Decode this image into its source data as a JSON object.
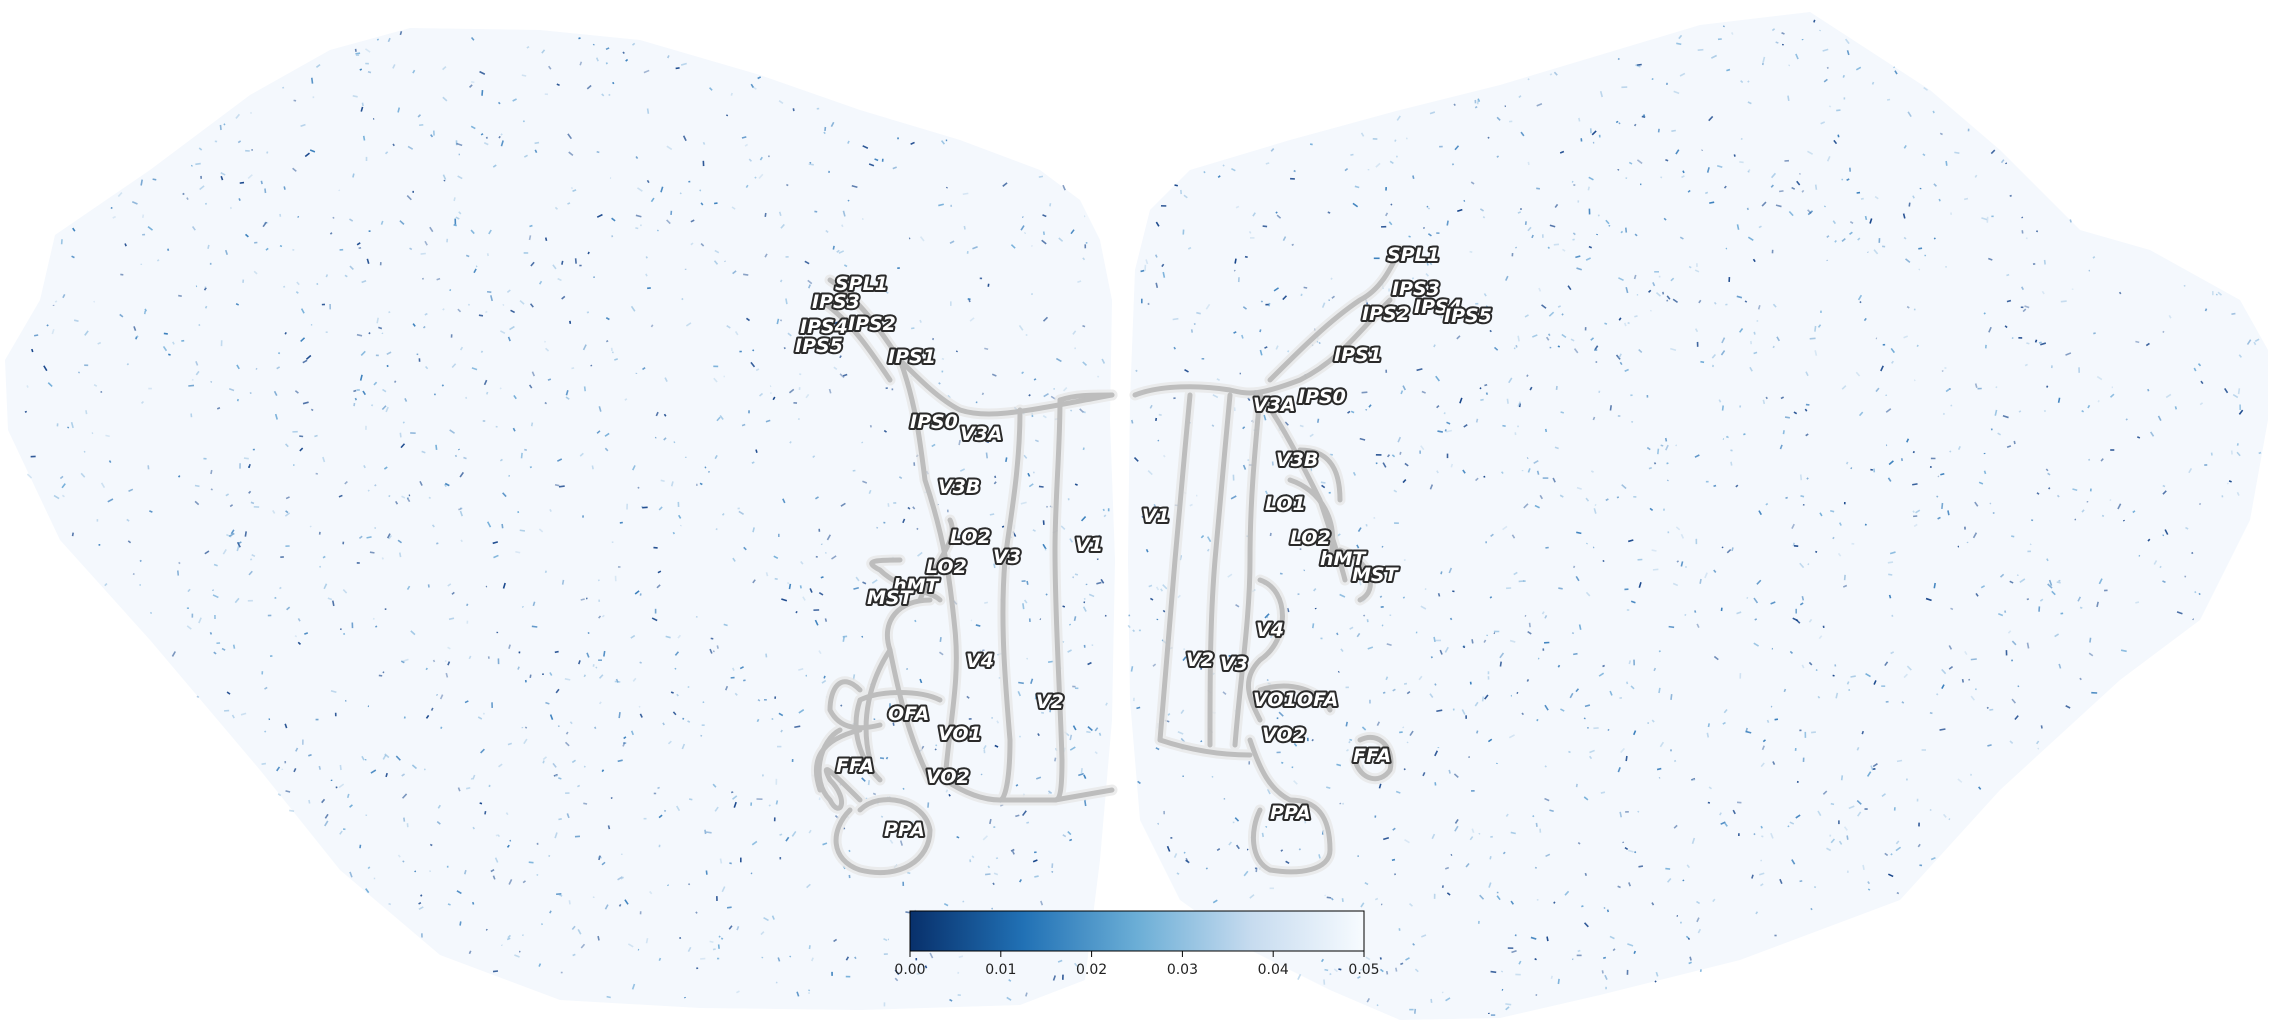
{
  "colorbar": {
    "min": 0.0,
    "max": 0.05,
    "ticks": [
      "0.00",
      "0.01",
      "0.02",
      "0.03",
      "0.04",
      "0.05"
    ],
    "colormap": [
      "#08306b",
      "#2171b5",
      "#6baed6",
      "#c6dbef",
      "#f7fbff"
    ]
  },
  "colors": {
    "background": "#f4f8fd",
    "speckle": "#0b3c85",
    "border": "#b9b9b9"
  },
  "left_hemisphere": {
    "rois": [
      "SPL1",
      "IPS3",
      "IPS2",
      "IPS4",
      "IPS5",
      "IPS1",
      "IPS0",
      "V3A",
      "V3B",
      "LO2",
      "LO2",
      "V3",
      "V1",
      "hMT",
      "MST",
      "V4",
      "V2",
      "OFA",
      "VO1",
      "FFA",
      "VO2",
      "PPA"
    ]
  },
  "right_hemisphere": {
    "rois": [
      "SPL1",
      "IPS3",
      "IPS2",
      "IPS4",
      "IPS5",
      "IPS1",
      "V3A",
      "IPS0",
      "V3B",
      "LO1",
      "V1",
      "LO2",
      "hMT",
      "MST",
      "V4",
      "V2",
      "V3",
      "VO1",
      "OFA",
      "VO2",
      "FFA",
      "PPA"
    ]
  }
}
